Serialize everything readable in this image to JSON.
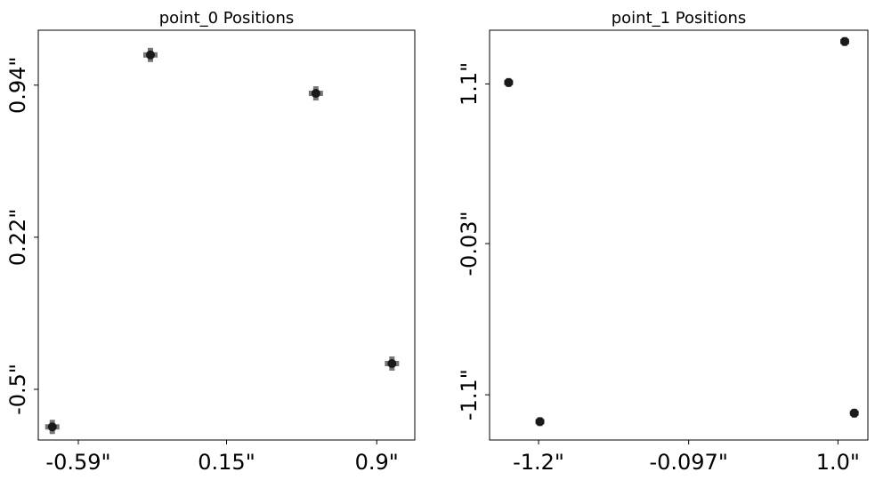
{
  "chart_data": [
    {
      "type": "scatter",
      "title": "point_0 Positions",
      "xlabel": "",
      "ylabel": "",
      "xlim": [
        -0.79,
        1.09
      ],
      "ylim": [
        -0.74,
        1.2
      ],
      "x_ticks": [
        {
          "value": -0.59,
          "label": "-0.59\""
        },
        {
          "value": 0.15,
          "label": "0.15\""
        },
        {
          "value": 0.9,
          "label": "0.9\""
        }
      ],
      "y_ticks": [
        {
          "value": -0.5,
          "label": "-0.5\""
        },
        {
          "value": 0.22,
          "label": "0.22\""
        },
        {
          "value": 0.94,
          "label": "0.94\""
        }
      ],
      "grid": false,
      "points": [
        {
          "x": -0.72,
          "y": -0.678
        },
        {
          "x": -0.23,
          "y": 1.083
        },
        {
          "x": 0.596,
          "y": 0.901
        },
        {
          "x": 0.976,
          "y": -0.378
        }
      ]
    },
    {
      "type": "scatter",
      "title": "point_1 Positions",
      "xlabel": "",
      "ylabel": "",
      "xlim": [
        -1.56,
        1.22
      ],
      "ylim": [
        -1.42,
        1.48
      ],
      "x_ticks": [
        {
          "value": -1.2,
          "label": "-1.2\""
        },
        {
          "value": -0.097,
          "label": "-0.097\""
        },
        {
          "value": 1.0,
          "label": "1.0\""
        }
      ],
      "y_ticks": [
        {
          "value": -1.1,
          "label": "-1.1\""
        },
        {
          "value": -0.03,
          "label": "-0.03\""
        },
        {
          "value": 1.1,
          "label": "1.1\""
        }
      ],
      "grid": false,
      "points": [
        {
          "x": -1.42,
          "y": 1.11
        },
        {
          "x": -1.19,
          "y": -1.29
        },
        {
          "x": 1.05,
          "y": 1.4
        },
        {
          "x": 1.12,
          "y": -1.23
        }
      ]
    }
  ],
  "style": {
    "marker_color": "#1a1a1a",
    "cross_color": "#555555",
    "axis_color": "#000000"
  }
}
